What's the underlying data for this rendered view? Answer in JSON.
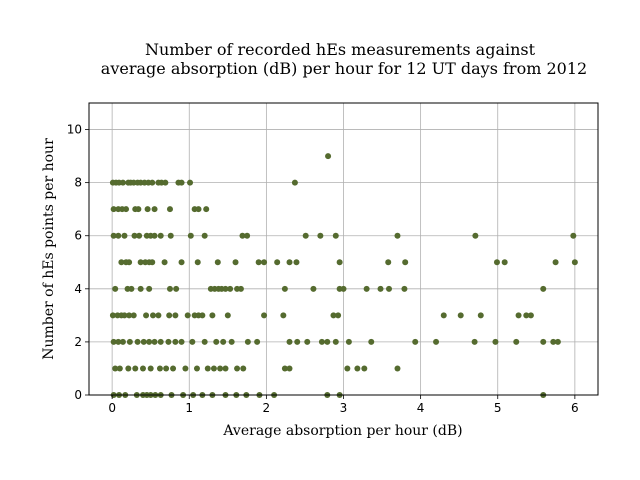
{
  "chart_data": {
    "type": "scatter",
    "title_line1": "Number of recorded hEs measurements against",
    "title_line2": "average absorption (dB) per hour for 12 UT days from 2012",
    "xlabel": "Average absorption per hour (dB)",
    "ylabel": "Number of hEs points per hour",
    "xlim": [
      -0.3,
      6.3
    ],
    "ylim": [
      0,
      11
    ],
    "xticks": [
      0,
      1,
      2,
      3,
      4,
      5,
      6
    ],
    "yticks": [
      0,
      2,
      4,
      6,
      8,
      10
    ],
    "grid": true,
    "marker_color": "#556b2f",
    "series": [
      {
        "points": [
          [
            0.01,
            8
          ],
          [
            0.05,
            8
          ],
          [
            0.09,
            8
          ],
          [
            0.14,
            8
          ],
          [
            0.21,
            8
          ],
          [
            0.24,
            8
          ],
          [
            0.28,
            8
          ],
          [
            0.33,
            8
          ],
          [
            0.37,
            8
          ],
          [
            0.42,
            8
          ],
          [
            0.47,
            8
          ],
          [
            0.52,
            8
          ],
          [
            0.6,
            8
          ],
          [
            0.64,
            8
          ],
          [
            0.69,
            8
          ],
          [
            0.86,
            8
          ],
          [
            0.9,
            8
          ],
          [
            1.01,
            8
          ],
          [
            2.37,
            8
          ],
          [
            2.8,
            9
          ],
          [
            0.02,
            7
          ],
          [
            0.08,
            7
          ],
          [
            0.13,
            7
          ],
          [
            0.18,
            7
          ],
          [
            0.3,
            7
          ],
          [
            0.34,
            7
          ],
          [
            0.46,
            7
          ],
          [
            0.55,
            7
          ],
          [
            0.75,
            7
          ],
          [
            1.07,
            7
          ],
          [
            1.12,
            7
          ],
          [
            1.22,
            7
          ],
          [
            0.02,
            6
          ],
          [
            0.08,
            6
          ],
          [
            0.16,
            6
          ],
          [
            0.29,
            6
          ],
          [
            0.35,
            6
          ],
          [
            0.45,
            6
          ],
          [
            0.5,
            6
          ],
          [
            0.55,
            6
          ],
          [
            0.63,
            6
          ],
          [
            0.76,
            6
          ],
          [
            1.02,
            6
          ],
          [
            1.2,
            6
          ],
          [
            1.69,
            6
          ],
          [
            1.75,
            6
          ],
          [
            2.51,
            6
          ],
          [
            2.7,
            6
          ],
          [
            2.9,
            6
          ],
          [
            3.7,
            6
          ],
          [
            4.71,
            6
          ],
          [
            5.98,
            6
          ],
          [
            0.12,
            5
          ],
          [
            0.18,
            5
          ],
          [
            0.22,
            5
          ],
          [
            0.37,
            5
          ],
          [
            0.43,
            5
          ],
          [
            0.48,
            5
          ],
          [
            0.52,
            5
          ],
          [
            0.68,
            5
          ],
          [
            0.9,
            5
          ],
          [
            1.11,
            5
          ],
          [
            1.37,
            5
          ],
          [
            1.6,
            5
          ],
          [
            1.9,
            5
          ],
          [
            1.97,
            5
          ],
          [
            2.14,
            5
          ],
          [
            2.3,
            5
          ],
          [
            2.39,
            5
          ],
          [
            2.95,
            5
          ],
          [
            3.58,
            5
          ],
          [
            3.8,
            5
          ],
          [
            4.99,
            5
          ],
          [
            5.09,
            5
          ],
          [
            5.75,
            5
          ],
          [
            6.0,
            5
          ],
          [
            0.04,
            4
          ],
          [
            0.2,
            4
          ],
          [
            0.25,
            4
          ],
          [
            0.37,
            4
          ],
          [
            0.48,
            4
          ],
          [
            0.75,
            4
          ],
          [
            0.83,
            4
          ],
          [
            1.28,
            4
          ],
          [
            1.33,
            4
          ],
          [
            1.38,
            4
          ],
          [
            1.42,
            4
          ],
          [
            1.47,
            4
          ],
          [
            1.53,
            4
          ],
          [
            1.62,
            4
          ],
          [
            1.67,
            4
          ],
          [
            2.24,
            4
          ],
          [
            2.61,
            4
          ],
          [
            2.95,
            4
          ],
          [
            3.0,
            4
          ],
          [
            3.3,
            4
          ],
          [
            3.48,
            4
          ],
          [
            3.59,
            4
          ],
          [
            3.79,
            4
          ],
          [
            5.59,
            4
          ],
          [
            0.01,
            3
          ],
          [
            0.07,
            3
          ],
          [
            0.12,
            3
          ],
          [
            0.16,
            3
          ],
          [
            0.22,
            3
          ],
          [
            0.28,
            3
          ],
          [
            0.44,
            3
          ],
          [
            0.53,
            3
          ],
          [
            0.6,
            3
          ],
          [
            0.74,
            3
          ],
          [
            0.82,
            3
          ],
          [
            0.98,
            3
          ],
          [
            1.07,
            3
          ],
          [
            1.12,
            3
          ],
          [
            1.17,
            3
          ],
          [
            1.3,
            3
          ],
          [
            1.5,
            3
          ],
          [
            1.97,
            3
          ],
          [
            2.22,
            3
          ],
          [
            2.87,
            3
          ],
          [
            2.93,
            3
          ],
          [
            4.3,
            3
          ],
          [
            4.52,
            3
          ],
          [
            4.78,
            3
          ],
          [
            5.27,
            3
          ],
          [
            5.37,
            3
          ],
          [
            5.43,
            3
          ],
          [
            0.02,
            2
          ],
          [
            0.08,
            2
          ],
          [
            0.14,
            2
          ],
          [
            0.23,
            2
          ],
          [
            0.33,
            2
          ],
          [
            0.41,
            2
          ],
          [
            0.48,
            2
          ],
          [
            0.55,
            2
          ],
          [
            0.63,
            2
          ],
          [
            0.73,
            2
          ],
          [
            0.82,
            2
          ],
          [
            0.9,
            2
          ],
          [
            1.04,
            2
          ],
          [
            1.2,
            2
          ],
          [
            1.35,
            2
          ],
          [
            1.44,
            2
          ],
          [
            1.55,
            2
          ],
          [
            1.76,
            2
          ],
          [
            1.88,
            2
          ],
          [
            2.3,
            2
          ],
          [
            2.4,
            2
          ],
          [
            2.53,
            2
          ],
          [
            2.72,
            2
          ],
          [
            2.79,
            2
          ],
          [
            2.9,
            2
          ],
          [
            3.07,
            2
          ],
          [
            3.36,
            2
          ],
          [
            3.93,
            2
          ],
          [
            4.2,
            2
          ],
          [
            4.7,
            2
          ],
          [
            4.97,
            2
          ],
          [
            5.24,
            2
          ],
          [
            5.59,
            2
          ],
          [
            5.72,
            2
          ],
          [
            5.78,
            2
          ],
          [
            0.04,
            1
          ],
          [
            0.1,
            1
          ],
          [
            0.21,
            1
          ],
          [
            0.3,
            1
          ],
          [
            0.4,
            1
          ],
          [
            0.5,
            1
          ],
          [
            0.62,
            1
          ],
          [
            0.7,
            1
          ],
          [
            0.79,
            1
          ],
          [
            0.95,
            1
          ],
          [
            1.1,
            1
          ],
          [
            1.24,
            1
          ],
          [
            1.32,
            1
          ],
          [
            1.4,
            1
          ],
          [
            1.47,
            1
          ],
          [
            1.62,
            1
          ],
          [
            1.7,
            1
          ],
          [
            2.24,
            1
          ],
          [
            2.3,
            1
          ],
          [
            3.05,
            1
          ],
          [
            3.18,
            1
          ],
          [
            3.27,
            1
          ],
          [
            3.7,
            1
          ],
          [
            0.02,
            0
          ],
          [
            0.09,
            0
          ],
          [
            0.17,
            0
          ],
          [
            0.32,
            0
          ],
          [
            0.4,
            0
          ],
          [
            0.45,
            0
          ],
          [
            0.5,
            0
          ],
          [
            0.56,
            0
          ],
          [
            0.63,
            0
          ],
          [
            0.77,
            0
          ],
          [
            0.92,
            0
          ],
          [
            1.05,
            0
          ],
          [
            1.17,
            0
          ],
          [
            1.3,
            0
          ],
          [
            1.47,
            0
          ],
          [
            1.61,
            0
          ],
          [
            1.74,
            0
          ],
          [
            1.91,
            0
          ],
          [
            2.1,
            0
          ],
          [
            2.79,
            0
          ],
          [
            2.95,
            0
          ],
          [
            5.59,
            0
          ]
        ]
      }
    ]
  }
}
